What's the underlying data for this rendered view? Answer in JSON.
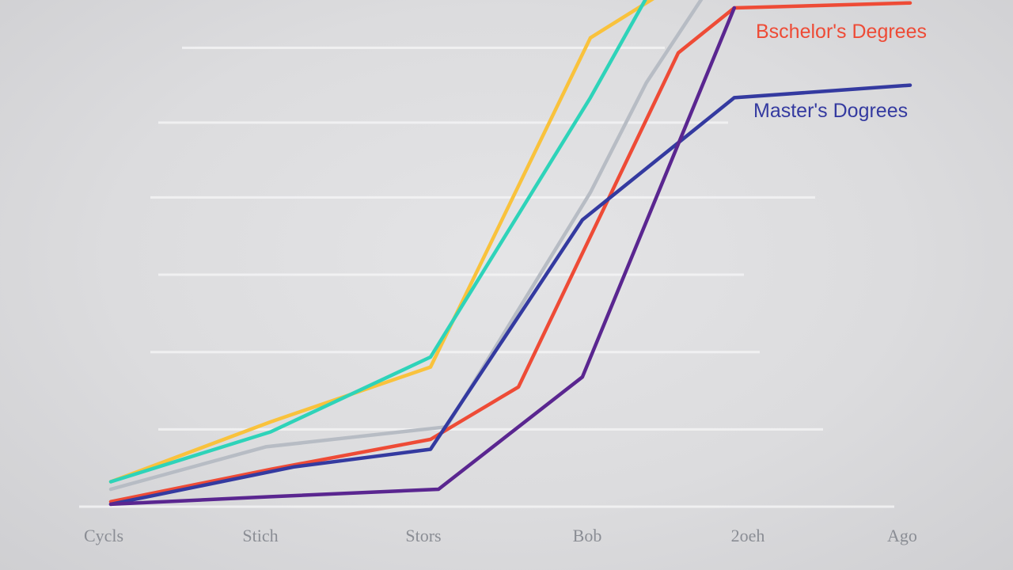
{
  "chart_data": {
    "type": "line",
    "title": "",
    "xlabel": "",
    "ylabel": "",
    "categories": [
      "Cycls",
      "Stich",
      "Stors",
      "Bob",
      "2oeh",
      "Ago"
    ],
    "x": [
      0,
      1,
      2,
      3,
      4,
      5
    ],
    "xlim": [
      0,
      5
    ],
    "ylim": [
      0,
      100
    ],
    "grid": true,
    "legend": "inline labels at right end of lines",
    "gridlines": [
      0,
      15.5,
      31,
      46.5,
      62,
      77,
      92
    ],
    "series": [
      {
        "key": "yellow",
        "color": "#f9c23c",
        "points": [
          [
            0,
            5
          ],
          [
            1,
            17
          ],
          [
            2,
            28
          ],
          [
            3.0,
            94
          ],
          [
            3.4,
            102
          ]
        ]
      },
      {
        "key": "teal",
        "color": "#2ed3b9",
        "points": [
          [
            0,
            5
          ],
          [
            1,
            15
          ],
          [
            2,
            30
          ],
          [
            3.0,
            82
          ],
          [
            3.35,
            102
          ]
        ]
      },
      {
        "key": "gray",
        "color": "#b7bcc4",
        "points": [
          [
            0,
            3.5
          ],
          [
            0.97,
            12
          ],
          [
            2.1,
            16
          ],
          [
            3.0,
            63
          ],
          [
            3.35,
            85
          ],
          [
            3.7,
            102
          ]
        ]
      },
      {
        "key": "bachelors",
        "name": "Bschelor's Degrees",
        "color": "#ee4b36",
        "points": [
          [
            0,
            1
          ],
          [
            1,
            7.5
          ],
          [
            2,
            13.5
          ],
          [
            2.55,
            24
          ],
          [
            3.55,
            91
          ],
          [
            3.9,
            100
          ],
          [
            5,
            101
          ]
        ]
      },
      {
        "key": "masters",
        "name": "Master's Dogrees",
        "color": "#343aa0",
        "points": [
          [
            0,
            0.5
          ],
          [
            1.15,
            8
          ],
          [
            2,
            11.5
          ],
          [
            2.95,
            57.5
          ],
          [
            3.9,
            82
          ],
          [
            5,
            84.5
          ]
        ]
      },
      {
        "key": "purple",
        "color": "#5a2690",
        "points": [
          [
            0,
            0.5
          ],
          [
            1,
            2
          ],
          [
            2.05,
            3.5
          ],
          [
            2.95,
            26
          ],
          [
            3.9,
            100
          ]
        ]
      }
    ]
  }
}
